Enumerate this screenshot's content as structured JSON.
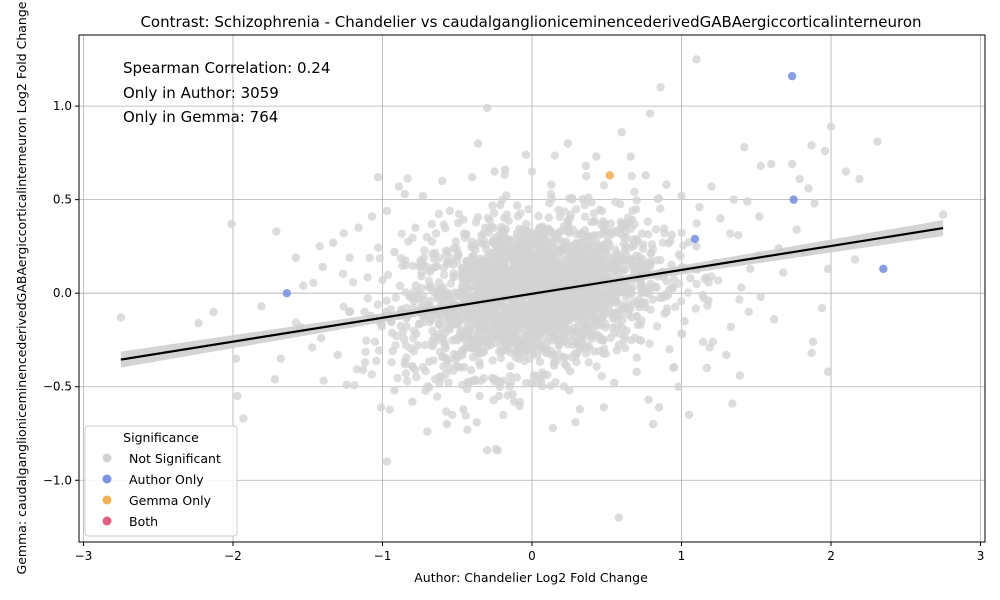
{
  "chart_data": {
    "type": "scatter",
    "title": "Contrast: Schizophrenia - Chandelier vs caudalganglioniceminencederivedGABAergiccorticalinterneuron",
    "xlabel": "Author: Chandelier Log2 Fold Change",
    "ylabel": "Gemma: caudalganglioniceminencederivedGABAergiccorticalinterneuron Log2 Fold Change",
    "xlim": [
      -3.03,
      3.03
    ],
    "ylim": [
      -1.33,
      1.38
    ],
    "xticks": [
      -3,
      -2,
      -1,
      0,
      1,
      2,
      3
    ],
    "xtick_labels": [
      "−3",
      "−2",
      "−1",
      "0",
      "1",
      "2",
      "3"
    ],
    "yticks": [
      -1.0,
      -0.5,
      0.0,
      0.5,
      1.0
    ],
    "ytick_labels": [
      "−1.0",
      "−0.5",
      "0.0",
      "0.5",
      "1.0"
    ],
    "grid": true,
    "annotations": [
      "Spearman Correlation: 0.24",
      "Only in Author: 3059",
      "Only in Gemma: 764"
    ],
    "legend": {
      "title": "Significance",
      "position": "lower-left",
      "entries": [
        {
          "label": "Not Significant",
          "color": "#d3d3d3"
        },
        {
          "label": "Author Only",
          "color": "#7b93e0"
        },
        {
          "label": "Gemma Only",
          "color": "#f5b055"
        },
        {
          "label": "Both",
          "color": "#e0607e"
        }
      ]
    },
    "regression_line": {
      "x": [
        -2.75,
        2.75
      ],
      "y": [
        -0.355,
        0.348
      ],
      "color": "#000000",
      "ci_color": "#cccccc"
    },
    "series": [
      {
        "name": "Author Only",
        "color": "#7b93e0",
        "points": [
          {
            "x": 1.74,
            "y": 1.16
          },
          {
            "x": 1.75,
            "y": 0.5
          },
          {
            "x": 1.09,
            "y": 0.29
          },
          {
            "x": 2.35,
            "y": 0.13
          },
          {
            "x": -1.64,
            "y": 0.0
          }
        ]
      },
      {
        "name": "Gemma Only",
        "color": "#f5b055",
        "points": [
          {
            "x": 0.52,
            "y": 0.63
          }
        ]
      },
      {
        "name": "Not Significant",
        "color": "#d3d3d3",
        "points": [
          {
            "x": 1.1,
            "y": 1.25
          },
          {
            "x": 0.86,
            "y": 1.1
          },
          {
            "x": -0.3,
            "y": 0.99
          },
          {
            "x": 0.79,
            "y": 0.96
          },
          {
            "x": 2.0,
            "y": 0.89
          },
          {
            "x": 2.31,
            "y": 0.81
          },
          {
            "x": -0.36,
            "y": 0.8
          },
          {
            "x": 0.24,
            "y": 0.8
          },
          {
            "x": 0.6,
            "y": 0.86
          },
          {
            "x": 2.1,
            "y": 0.65
          },
          {
            "x": 2.19,
            "y": 0.61
          },
          {
            "x": 1.96,
            "y": 0.76
          },
          {
            "x": 1.87,
            "y": 0.79
          },
          {
            "x": 1.42,
            "y": 0.78
          },
          {
            "x": 1.74,
            "y": 0.69
          },
          {
            "x": 1.79,
            "y": 0.61
          },
          {
            "x": 1.85,
            "y": 0.56
          },
          {
            "x": 1.53,
            "y": 0.68
          },
          {
            "x": 1.6,
            "y": 0.69
          },
          {
            "x": 1.89,
            "y": 0.48
          },
          {
            "x": 2.75,
            "y": 0.42
          },
          {
            "x": -2.75,
            "y": -0.13
          },
          {
            "x": -2.23,
            "y": -0.16
          },
          {
            "x": -2.13,
            "y": -0.1
          },
          {
            "x": -2.01,
            "y": 0.37
          },
          {
            "x": -1.98,
            "y": -0.35
          },
          {
            "x": -1.97,
            "y": -0.55
          },
          {
            "x": -1.93,
            "y": -0.67
          },
          {
            "x": -1.81,
            "y": -0.07
          },
          {
            "x": -1.71,
            "y": 0.33
          },
          {
            "x": -1.72,
            "y": -0.46
          },
          {
            "x": -1.68,
            "y": -0.35
          },
          {
            "x": -0.97,
            "y": -0.9
          },
          {
            "x": 0.58,
            "y": -1.2
          },
          {
            "x": -0.3,
            "y": -0.84
          },
          {
            "x": -0.23,
            "y": -0.84
          },
          {
            "x": 1.05,
            "y": -0.65
          },
          {
            "x": 1.34,
            "y": -0.59
          },
          {
            "x": 1.39,
            "y": -0.44
          },
          {
            "x": 1.98,
            "y": -0.42
          },
          {
            "x": 1.87,
            "y": -0.32
          },
          {
            "x": 1.88,
            "y": -0.26
          },
          {
            "x": 1.62,
            "y": -0.14
          },
          {
            "x": 1.94,
            "y": -0.08
          },
          {
            "x": 2.16,
            "y": 0.18
          },
          {
            "x": 1.98,
            "y": 0.13
          },
          {
            "x": 0.85,
            "y": -0.61
          },
          {
            "x": 0.81,
            "y": -0.7
          },
          {
            "x": -0.57,
            "y": -0.7
          },
          {
            "x": 0.14,
            "y": -0.72
          },
          {
            "x": -0.7,
            "y": -0.74
          },
          {
            "x": 0.29,
            "y": -0.69
          },
          {
            "x": -1.01,
            "y": -0.61
          },
          {
            "x": -1.24,
            "y": -0.49
          },
          {
            "x": -1.47,
            "y": -0.29
          },
          {
            "x": -1.26,
            "y": 0.32
          },
          {
            "x": -1.07,
            "y": 0.41
          },
          {
            "x": -1.03,
            "y": 0.62
          },
          {
            "x": -0.85,
            "y": 0.53
          },
          {
            "x": -0.89,
            "y": 0.57
          },
          {
            "x": -0.25,
            "y": 0.65
          },
          {
            "x": 0.43,
            "y": 0.73
          },
          {
            "x": 0.66,
            "y": 0.73
          },
          {
            "x": 0.0,
            "y": 0.65
          },
          {
            "x": -0.04,
            "y": 0.74
          },
          {
            "x": 1.2,
            "y": 0.57
          },
          {
            "x": 1.35,
            "y": 0.5
          },
          {
            "x": 1.44,
            "y": 0.49
          },
          {
            "x": 1.52,
            "y": 0.41
          },
          {
            "x": 1.77,
            "y": 0.34
          },
          {
            "x": 1.65,
            "y": 0.24
          },
          {
            "x": 1.82,
            "y": 0.22
          },
          {
            "x": 1.51,
            "y": 0.2
          },
          {
            "x": 1.46,
            "y": 0.13
          },
          {
            "x": 1.68,
            "y": 0.11
          },
          {
            "x": 1.4,
            "y": 0.03
          },
          {
            "x": 1.53,
            "y": -0.02
          },
          {
            "x": 1.45,
            "y": -0.1
          },
          {
            "x": 1.33,
            "y": -0.18
          },
          {
            "x": 1.21,
            "y": -0.26
          },
          {
            "x": 1.3,
            "y": -0.33
          },
          {
            "x": 1.17,
            "y": -0.4
          },
          {
            "x": 0.98,
            "y": -0.5
          },
          {
            "x": 0.78,
            "y": -0.57
          },
          {
            "x": 0.48,
            "y": -0.61
          },
          {
            "x": 0.32,
            "y": -0.62
          },
          {
            "x": -0.37,
            "y": -0.69
          },
          {
            "x": -0.46,
            "y": -0.62
          },
          {
            "x": -0.8,
            "y": -0.58
          },
          {
            "x": -0.92,
            "y": -0.52
          },
          {
            "x": -1.13,
            "y": -0.41
          },
          {
            "x": -1.3,
            "y": -0.33
          },
          {
            "x": -1.41,
            "y": -0.24
          },
          {
            "x": -1.55,
            "y": -0.18
          },
          {
            "x": -1.53,
            "y": 0.04
          },
          {
            "x": -1.4,
            "y": 0.14
          },
          {
            "x": -1.58,
            "y": 0.19
          },
          {
            "x": -1.33,
            "y": 0.27
          },
          {
            "x": -1.22,
            "y": 0.19
          },
          {
            "x": -1.16,
            "y": 0.35
          },
          {
            "x": -0.97,
            "y": 0.44
          },
          {
            "x": -0.73,
            "y": 0.52
          },
          {
            "x": -0.6,
            "y": 0.6
          },
          {
            "x": -0.4,
            "y": 0.62
          },
          {
            "x": -0.18,
            "y": 0.66
          },
          {
            "x": 0.13,
            "y": 0.58
          },
          {
            "x": 0.36,
            "y": 0.68
          },
          {
            "x": 0.76,
            "y": 0.63
          },
          {
            "x": 0.9,
            "y": 0.58
          },
          {
            "x": 1.0,
            "y": 0.52
          },
          {
            "x": 1.12,
            "y": 0.46
          },
          {
            "x": 1.26,
            "y": 0.4
          },
          {
            "x": 1.38,
            "y": 0.31
          },
          {
            "x": 1.1,
            "y": 0.25
          },
          {
            "x": 1.22,
            "y": 0.16
          },
          {
            "x": 1.06,
            "y": 0.08
          },
          {
            "x": 1.18,
            "y": -0.04
          },
          {
            "x": 1.02,
            "y": -0.15
          },
          {
            "x": 0.92,
            "y": -0.3
          },
          {
            "x": 0.7,
            "y": -0.42
          },
          {
            "x": 0.55,
            "y": -0.48
          },
          {
            "x": 0.25,
            "y": -0.52
          },
          {
            "x": -0.12,
            "y": -0.58
          },
          {
            "x": -0.35,
            "y": -0.55
          },
          {
            "x": -0.62,
            "y": -0.48
          },
          {
            "x": -0.85,
            "y": -0.38
          },
          {
            "x": -1.05,
            "y": -0.26
          },
          {
            "x": -1.12,
            "y": -0.1
          },
          {
            "x": -1.0,
            "y": 0.07
          },
          {
            "x": -0.92,
            "y": 0.22
          },
          {
            "x": -0.78,
            "y": 0.35
          },
          {
            "x": -0.55,
            "y": 0.44
          }
        ]
      }
    ]
  }
}
